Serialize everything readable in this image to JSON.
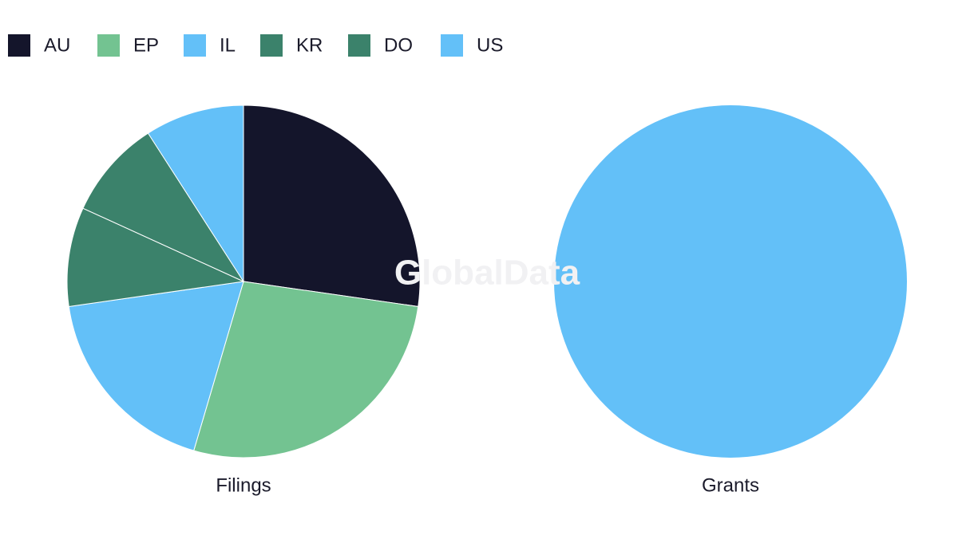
{
  "chart_data": {
    "type": "pie",
    "categories": [
      "AU",
      "EP",
      "IL",
      "KR",
      "DO",
      "US"
    ],
    "colors": [
      "#14152b",
      "#73c391",
      "#63c0f8",
      "#3b826b",
      "#3b826b",
      "#63c0f8"
    ],
    "series": [
      {
        "name": "Filings",
        "values": [
          3,
          3,
          2,
          1,
          1,
          1
        ]
      },
      {
        "name": "Grants",
        "values": [
          0,
          0,
          0,
          0,
          0,
          1
        ]
      }
    ],
    "watermark": "GlobalData"
  }
}
